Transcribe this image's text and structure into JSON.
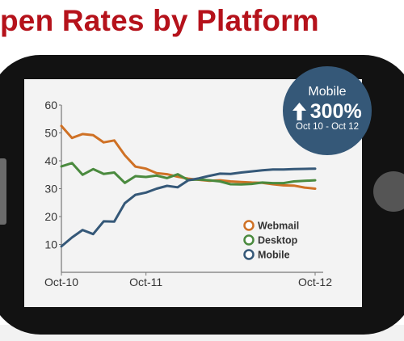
{
  "page_title": "pen Rates by Platform",
  "badge": {
    "title": "Mobile",
    "value": "300%",
    "range": "Oct 10 - Oct 12",
    "arrow_icon": "up-arrow-icon"
  },
  "colors": {
    "title": "#b5121b",
    "webmail": "#cf7125",
    "desktop": "#4a8a3e",
    "mobile": "#355878",
    "badge": "#355878",
    "axis": "#777777"
  },
  "chart_data": {
    "type": "line",
    "x": [
      0,
      1,
      2,
      3,
      4,
      5,
      6,
      7,
      8,
      9,
      10,
      11,
      12,
      13,
      14,
      15,
      16,
      17,
      18,
      19,
      20,
      21,
      22,
      23,
      24
    ],
    "x_ticks": [
      {
        "x": 0,
        "label": "Oct-10"
      },
      {
        "x": 8,
        "label": "Oct-11"
      },
      {
        "x": 24,
        "label": "Oct-12"
      }
    ],
    "xlim": [
      0,
      24
    ],
    "ylim": [
      0,
      60
    ],
    "y_ticks": [
      10,
      20,
      30,
      40,
      50,
      60
    ],
    "grid": false,
    "legend_position": "bottom-right",
    "series": [
      {
        "name": "Webmail",
        "color": "#cf7125",
        "values": [
          52.5,
          48.2,
          49.6,
          49.2,
          46.6,
          47.3,
          42,
          37.9,
          37.2,
          35.6,
          35.2,
          34.3,
          33.6,
          33.2,
          32.8,
          33,
          32.6,
          32.4,
          32.2,
          32.1,
          31.6,
          31.2,
          31.1,
          30.4,
          30
        ]
      },
      {
        "name": "Desktop",
        "color": "#4a8a3e",
        "values": [
          38,
          39.2,
          35,
          37,
          35.3,
          35.8,
          32.1,
          34.5,
          34.2,
          34.7,
          33.8,
          35.2,
          33.1,
          33.3,
          33,
          32.6,
          31.6,
          31.5,
          31.7,
          32.2,
          32,
          32,
          32.6,
          32.8,
          33
        ]
      },
      {
        "name": "Mobile",
        "color": "#355878",
        "values": [
          9.3,
          12.5,
          15.2,
          13.7,
          18.3,
          18.2,
          24.8,
          27.8,
          28.6,
          30,
          31,
          30.5,
          33,
          33.7,
          34.6,
          35.4,
          35.3,
          35.8,
          36.2,
          36.6,
          36.9,
          36.9,
          37,
          37.1,
          37.2
        ]
      }
    ]
  }
}
